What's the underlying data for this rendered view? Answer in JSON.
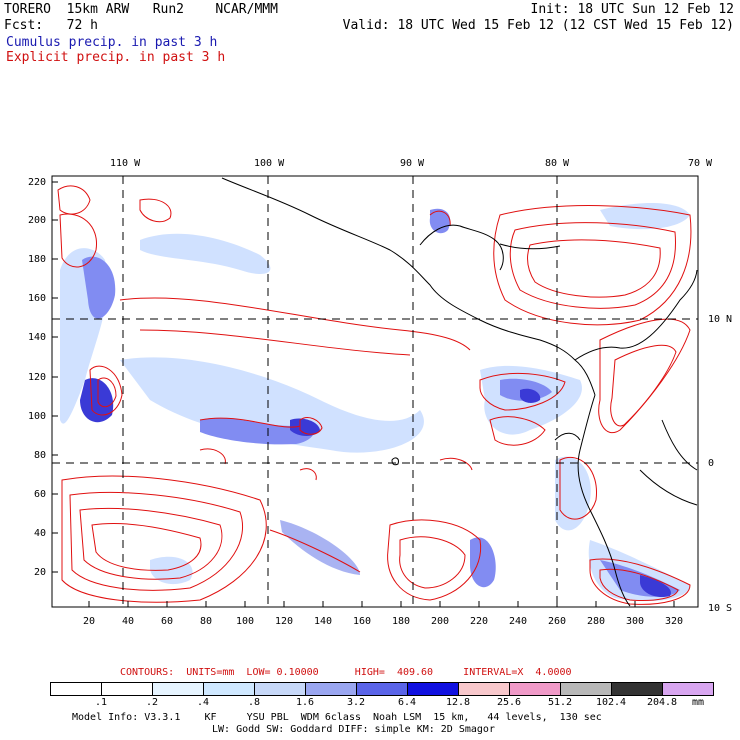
{
  "header": {
    "line1_left": "TORERO  15km ARW   Run2    NCAR/MMM",
    "line1_right": "Init: 18 UTC Sun 12 Feb 12",
    "line2_left": "Fcst:   72 h",
    "line2_right": "Valid: 18 UTC Wed 15 Feb 12 (12 CST Wed 15 Feb 12)",
    "legend_cumulus": "Cumulus precip. in past 3 h",
    "legend_explicit": "Explicit precip. in past 3 h"
  },
  "map": {
    "lon_labels_top": [
      "110 W",
      "100 W",
      "90 W",
      "80 W",
      "70 W"
    ],
    "lat_labels_right": [
      "10 N",
      "0",
      "10 S"
    ],
    "y_ticks": [
      "220",
      "200",
      "180",
      "160",
      "140",
      "120",
      "100",
      "80",
      "60",
      "40",
      "20"
    ],
    "x_ticks": [
      "20",
      "40",
      "60",
      "80",
      "100",
      "120",
      "140",
      "160",
      "180",
      "200",
      "220",
      "240",
      "260",
      "280",
      "300",
      "320"
    ],
    "colors": {
      "explicit_contour": "#e01010",
      "cumulus_light": "#c8dcff",
      "cumulus_mid": "#6c78f0",
      "cumulus_dark": "#1818d0",
      "coastline": "#000000",
      "grid": "#000000"
    }
  },
  "footer": {
    "contours_line": "CONTOURS:  UNITS=mm  LOW= 0.10000      HIGH=  409.60     INTERVAL=X  4.0000",
    "colorbar_labels": [
      ".1",
      ".2",
      ".4",
      ".8",
      "1.6",
      "3.2",
      "6.4",
      "12.8",
      "25.6",
      "51.2",
      "102.4",
      "204.8"
    ],
    "colorbar_unit": "mm",
    "colorbar_colors": [
      "#ffffff",
      "#ffffff",
      "#e6f4ff",
      "#cfe8ff",
      "#c7d8f8",
      "#9aa6f0",
      "#5a64e8",
      "#1010e0",
      "#f8c8cc",
      "#f09ac8",
      "#b8b8b8",
      "#333333",
      "#d8a6f0"
    ],
    "model_info_1": "Model Info: V3.3.1    KF     YSU PBL  WDM 6class  Noah LSM  15 km,   44 levels,  130 sec",
    "model_info_2": "LW: Godd SW: Goddard DIFF: simple KM: 2D Smagor"
  }
}
